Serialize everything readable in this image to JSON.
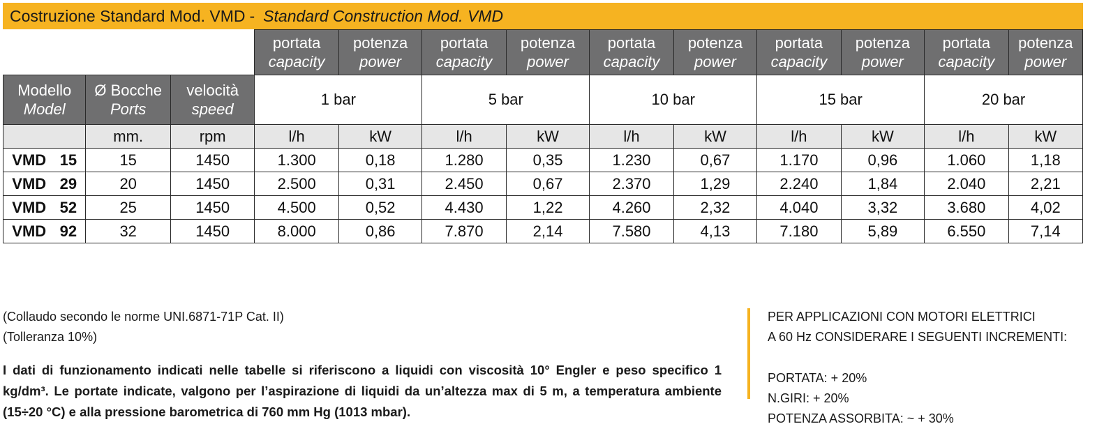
{
  "title": {
    "it": "Costruzione Standard Mod. VMD",
    "separator": "-",
    "en": "Standard Construction Mod. VMD"
  },
  "table": {
    "col_top": [
      {
        "main": "portata",
        "sub": "capacity"
      },
      {
        "main": "potenza",
        "sub": "power"
      },
      {
        "main": "portata",
        "sub": "capacity"
      },
      {
        "main": "potenza",
        "sub": "power"
      },
      {
        "main": "portata",
        "sub": "capacity"
      },
      {
        "main": "potenza",
        "sub": "power"
      },
      {
        "main": "portata",
        "sub": "capacity"
      },
      {
        "main": "potenza",
        "sub": "power"
      },
      {
        "main": "portata",
        "sub": "capacity"
      },
      {
        "main": "potenza",
        "sub": "power"
      }
    ],
    "left_headers": [
      {
        "main": "Modello",
        "sub": "Model"
      },
      {
        "main": "Ø Bocche",
        "sub": "Ports"
      },
      {
        "main": "velocità",
        "sub": "speed"
      }
    ],
    "pressures": [
      "1 bar",
      "5 bar",
      "10 bar",
      "15 bar",
      "20 bar"
    ],
    "units": [
      "",
      "mm.",
      "rpm",
      "l/h",
      "kW",
      "l/h",
      "kW",
      "l/h",
      "kW",
      "l/h",
      "kW",
      "l/h",
      "kW"
    ],
    "rows": [
      {
        "model": "VMD",
        "num": "15",
        "ports": "15",
        "rpm": "1450",
        "values": [
          "1.300",
          "0,18",
          "1.280",
          "0,35",
          "1.230",
          "0,67",
          "1.170",
          "0,96",
          "1.060",
          "1,18"
        ]
      },
      {
        "model": "VMD",
        "num": "29",
        "ports": "20",
        "rpm": "1450",
        "values": [
          "2.500",
          "0,31",
          "2.450",
          "0,67",
          "2.370",
          "1,29",
          "2.240",
          "1,84",
          "2.040",
          "2,21"
        ]
      },
      {
        "model": "VMD",
        "num": "52",
        "ports": "25",
        "rpm": "1450",
        "values": [
          "4.500",
          "0,52",
          "4.430",
          "1,22",
          "4.260",
          "2,32",
          "4.040",
          "3,32",
          "3.680",
          "4,02"
        ]
      },
      {
        "model": "VMD",
        "num": "92",
        "ports": "32",
        "rpm": "1450",
        "values": [
          "8.000",
          "0,86",
          "7.870",
          "2,14",
          "7.580",
          "4,13",
          "7.180",
          "5,89",
          "6.550",
          "7,14"
        ]
      }
    ]
  },
  "notes": {
    "line1": "(Collaudo secondo le norme UNI.6871-71P Cat. II)",
    "line2": "(Tolleranza 10%)",
    "paragraph": "I dati di funzionamento indicati nelle tabelle si riferiscono a liquidi con viscosità 10° Engler e peso specifico 1 kg/dm³. Le portate indicate, valgono per l’aspirazione di liquidi da un’altezza max di 5 m, a temperatura ambiente (15÷20 °C) e alla pressione barometrica di 760 mm Hg (1013 mbar)."
  },
  "side_note": {
    "line1": "PER APPLICAZIONI CON MOTORI ELETTRICI",
    "line2": "A 60 Hz CONSIDERARE I SEGUENTI INCREMENTI:",
    "item1": "PORTATA: + 20%",
    "item2": "N.GIRI: + 20%",
    "item3": "POTENZA ASSORBITA: ~ + 30%"
  },
  "colors": {
    "accent": "#f6b321",
    "header_dark": "#6f6f70",
    "header_light": "#e6e6e6"
  }
}
